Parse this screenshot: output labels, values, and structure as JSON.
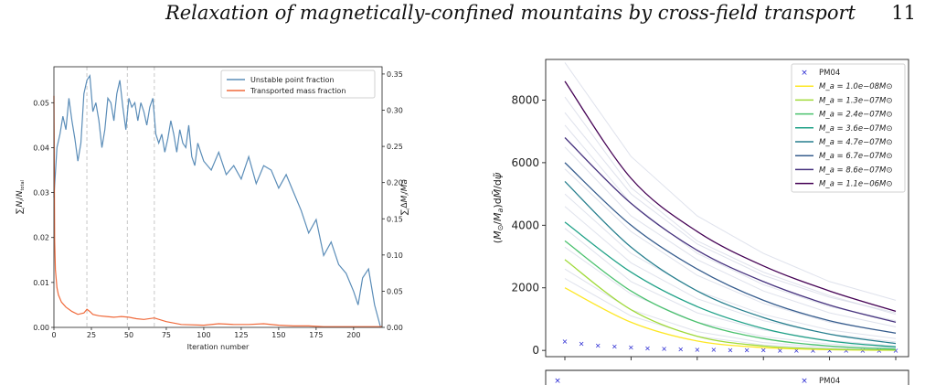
{
  "page": {
    "running_title": "Relaxation of magnetically-confined mountains by cross-field transport",
    "page_number": "11"
  },
  "chart_data": [
    {
      "type": "line",
      "xlabel": "Iteration number",
      "ylabel_left": "∑ N_i/N_total",
      "ylabel_right": "∑ ΔM_i/Ma",
      "xlim": [
        0,
        219
      ],
      "ylim_left": [
        0,
        0.058
      ],
      "ylim_right": [
        0,
        0.36
      ],
      "x_ticks": [
        "0",
        "25",
        "50",
        "75",
        "100",
        "125",
        "150",
        "175",
        "200"
      ],
      "y_ticks_left": [
        "0.00",
        "0.01",
        "0.02",
        "0.03",
        "0.04",
        "0.05"
      ],
      "y_ticks_right": [
        "0.00",
        "0.05",
        "0.10",
        "0.15",
        "0.20",
        "0.25",
        "0.30",
        "0.35"
      ],
      "vlines": [
        22,
        49,
        67
      ],
      "legend_position": "top-right",
      "series": [
        {
          "name": "Unstable point fraction",
          "axis": "left",
          "color": "#5b8db8",
          "x": [
            0,
            2,
            4,
            6,
            8,
            10,
            12,
            14,
            16,
            18,
            20,
            22,
            24,
            26,
            28,
            30,
            32,
            34,
            36,
            38,
            40,
            42,
            44,
            46,
            48,
            50,
            52,
            54,
            56,
            58,
            60,
            62,
            64,
            66,
            68,
            70,
            72,
            74,
            76,
            78,
            80,
            82,
            84,
            86,
            88,
            90,
            92,
            94,
            96,
            98,
            100,
            105,
            110,
            115,
            120,
            125,
            130,
            135,
            140,
            145,
            150,
            155,
            160,
            165,
            170,
            175,
            180,
            185,
            190,
            195,
            200,
            203,
            206,
            210,
            214,
            218
          ],
          "values": [
            0.029,
            0.04,
            0.043,
            0.047,
            0.044,
            0.051,
            0.046,
            0.042,
            0.037,
            0.041,
            0.052,
            0.055,
            0.056,
            0.048,
            0.05,
            0.046,
            0.04,
            0.044,
            0.051,
            0.05,
            0.046,
            0.052,
            0.055,
            0.049,
            0.044,
            0.051,
            0.049,
            0.05,
            0.046,
            0.05,
            0.048,
            0.045,
            0.049,
            0.051,
            0.043,
            0.041,
            0.043,
            0.039,
            0.042,
            0.046,
            0.043,
            0.039,
            0.044,
            0.041,
            0.04,
            0.045,
            0.038,
            0.036,
            0.041,
            0.039,
            0.037,
            0.035,
            0.039,
            0.034,
            0.036,
            0.033,
            0.038,
            0.032,
            0.036,
            0.035,
            0.031,
            0.034,
            0.03,
            0.026,
            0.021,
            0.024,
            0.016,
            0.019,
            0.014,
            0.012,
            0.008,
            0.005,
            0.011,
            0.013,
            0.005,
            0.0
          ]
        },
        {
          "name": "Transported mass fraction",
          "axis": "right",
          "color": "#f06a3b",
          "x": [
            0,
            0.5,
            1,
            2,
            3,
            5,
            8,
            12,
            16,
            20,
            22,
            24,
            26,
            30,
            35,
            40,
            45,
            50,
            55,
            60,
            67,
            75,
            85,
            100,
            110,
            120,
            130,
            140,
            150,
            160,
            170,
            180,
            190,
            200,
            210,
            219
          ],
          "values": [
            0.32,
            0.12,
            0.08,
            0.055,
            0.045,
            0.035,
            0.028,
            0.022,
            0.018,
            0.02,
            0.025,
            0.022,
            0.018,
            0.016,
            0.015,
            0.014,
            0.015,
            0.014,
            0.012,
            0.011,
            0.013,
            0.008,
            0.004,
            0.003,
            0.005,
            0.004,
            0.004,
            0.005,
            0.003,
            0.002,
            0.002,
            0.001,
            0.001,
            0.001,
            0.001,
            0.001
          ]
        }
      ]
    },
    {
      "type": "line",
      "ylabel": "(M⊙/Ma)dM̃/dψ̃",
      "ylim": [
        -200,
        9300
      ],
      "y_ticks": [
        "0",
        "2000",
        "4000",
        "6000",
        "8000"
      ],
      "legend_position": "top-right",
      "series": [
        {
          "name": "PM04",
          "marker": "x",
          "color": "#1f1fd0",
          "x": [
            0,
            0.05,
            0.1,
            0.15,
            0.2,
            0.25,
            0.3,
            0.35,
            0.4,
            0.45,
            0.5,
            0.55,
            0.6,
            0.65,
            0.7,
            0.75,
            0.8,
            0.85,
            0.9,
            0.95,
            1.0
          ],
          "values": [
            300,
            220,
            170,
            130,
            100,
            78,
            60,
            46,
            35,
            27,
            21,
            16,
            12,
            9,
            7,
            5,
            4,
            3,
            2,
            1,
            1
          ]
        },
        {
          "name": "M_a = 1.0e−08M⊙",
          "color": "#fde725",
          "x": [
            0,
            0.2,
            0.4,
            0.6,
            0.8,
            1.0
          ],
          "values": [
            2000,
            900,
            300,
            90,
            25,
            5
          ]
        },
        {
          "name": "M_a = 1.3e−07M⊙",
          "color": "#a0da39",
          "x": [
            0,
            0.2,
            0.4,
            0.6,
            0.8,
            1.0
          ],
          "values": [
            2900,
            1300,
            450,
            140,
            40,
            10
          ]
        },
        {
          "name": "M_a = 2.4e−07M⊙",
          "color": "#4ac16d",
          "x": [
            0,
            0.2,
            0.4,
            0.6,
            0.8,
            1.0
          ],
          "values": [
            3500,
            1900,
            900,
            380,
            140,
            40
          ]
        },
        {
          "name": "M_a = 3.6e−07M⊙",
          "color": "#1fa187",
          "x": [
            0,
            0.2,
            0.4,
            0.6,
            0.8,
            1.0
          ],
          "values": [
            4100,
            2500,
            1400,
            700,
            300,
            110
          ]
        },
        {
          "name": "M_a = 4.7e−07M⊙",
          "color": "#277f8e",
          "x": [
            0,
            0.2,
            0.4,
            0.6,
            0.8,
            1.0
          ],
          "values": [
            5400,
            3300,
            1900,
            1050,
            520,
            220
          ]
        },
        {
          "name": "M_a = 6.7e−07M⊙",
          "color": "#365c8d",
          "x": [
            0,
            0.2,
            0.4,
            0.6,
            0.8,
            1.0
          ],
          "values": [
            6000,
            4000,
            2600,
            1600,
            950,
            550
          ]
        },
        {
          "name": "M_a = 8.6e−07M⊙",
          "color": "#46327e",
          "x": [
            0,
            0.2,
            0.4,
            0.6,
            0.8,
            1.0
          ],
          "values": [
            6800,
            4700,
            3200,
            2200,
            1450,
            900
          ]
        },
        {
          "name": "M_a = 1.1e−06M⊙",
          "color": "#440154",
          "x": [
            0,
            0.2,
            0.4,
            0.6,
            0.8,
            1.0
          ],
          "values": [
            8600,
            5500,
            3800,
            2700,
            1900,
            1250
          ]
        }
      ]
    },
    {
      "type": "line",
      "partial": true,
      "legend_position": "top-right",
      "series": [
        {
          "name": "PM04",
          "marker": "x",
          "color": "#1f1fd0"
        }
      ]
    }
  ]
}
